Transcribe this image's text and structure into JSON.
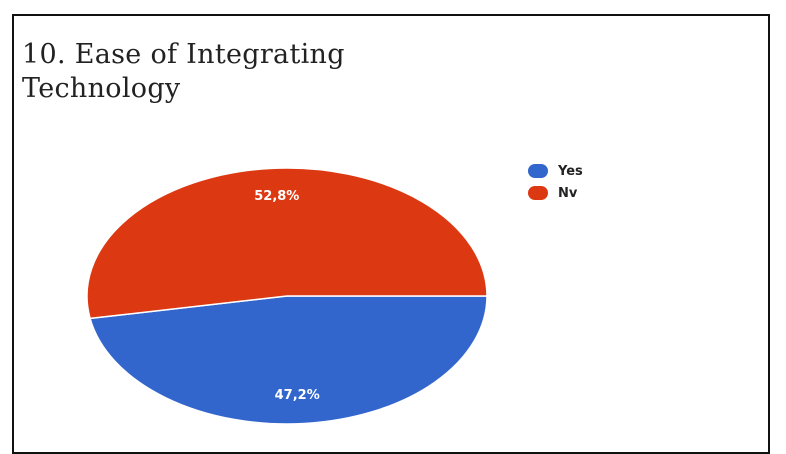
{
  "chart_data": {
    "type": "pie",
    "title_lines": [
      "10. Ease of Integrating",
      "Technology"
    ],
    "slices": [
      {
        "label": "Yes",
        "value": 47.2,
        "display": "47,2%",
        "color": "#3366cc"
      },
      {
        "label": "Nv",
        "value": 52.8,
        "display": "52,8%",
        "color": "#dc3912"
      }
    ],
    "legend_position": "top-right",
    "label_color": "#ffffff"
  }
}
